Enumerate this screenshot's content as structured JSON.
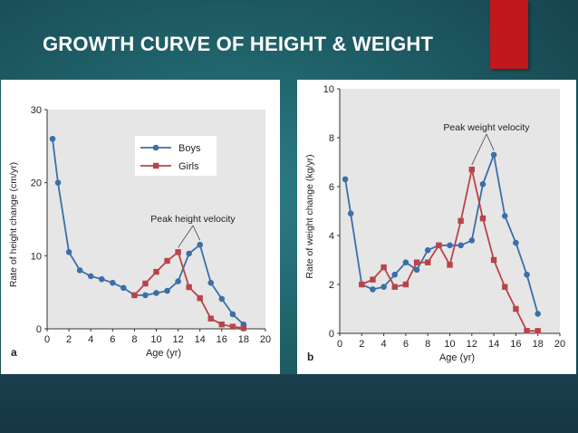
{
  "slide": {
    "title": "GROWTH CURVE OF HEIGHT & WEIGHT",
    "accent_color": "#c0181d",
    "background_color": "#1f6068"
  },
  "chart_data": [
    {
      "type": "line",
      "panel_label": "a",
      "xlabel": "Age (yr)",
      "ylabel": "Rate of height change (cm/yr)",
      "xlim": [
        0,
        20
      ],
      "ylim": [
        0,
        30
      ],
      "x_ticks": [
        "0",
        "2",
        "4",
        "6",
        "8",
        "10",
        "12",
        "14",
        "16",
        "18",
        "20"
      ],
      "y_ticks": [
        "0",
        "10",
        "20",
        "30"
      ],
      "grid": false,
      "legend_position": "top-right",
      "annotation": "Peak height velocity",
      "series": [
        {
          "name": "Boys",
          "color": "#3b6fa8",
          "marker": "circle",
          "x": [
            0.5,
            1,
            2,
            3,
            4,
            5,
            6,
            7,
            8,
            9,
            10,
            11,
            12,
            13,
            14,
            15,
            16,
            17,
            18
          ],
          "y": [
            26,
            20,
            10.5,
            8,
            7.2,
            6.8,
            6.3,
            5.6,
            4.6,
            4.6,
            4.9,
            5.2,
            6.5,
            10.3,
            11.5,
            6.3,
            4.1,
            2,
            0.6
          ]
        },
        {
          "name": "Girls",
          "color": "#b8444b",
          "marker": "square",
          "x": [
            8,
            9,
            10,
            11,
            12,
            13,
            14,
            15,
            16,
            17,
            18
          ],
          "y": [
            4.6,
            6.2,
            7.8,
            9.3,
            10.5,
            5.7,
            4.2,
            1.4,
            0.6,
            0.3,
            0.1
          ]
        }
      ]
    },
    {
      "type": "line",
      "panel_label": "b",
      "xlabel": "Age (yr)",
      "ylabel": "Rate of weight change (kg/yr)",
      "xlim": [
        0,
        20
      ],
      "ylim": [
        0,
        10
      ],
      "x_ticks": [
        "0",
        "2",
        "4",
        "6",
        "8",
        "10",
        "12",
        "14",
        "16",
        "18",
        "20"
      ],
      "y_ticks": [
        "0",
        "2",
        "4",
        "6",
        "8",
        "10"
      ],
      "grid": false,
      "annotation": "Peak weight velocity",
      "series": [
        {
          "name": "Boys",
          "color": "#3b6fa8",
          "marker": "circle",
          "x": [
            0.5,
            1,
            2,
            3,
            4,
            5,
            6,
            7,
            8,
            9,
            10,
            11,
            12,
            13,
            14,
            15,
            16,
            17,
            18
          ],
          "y": [
            6.3,
            4.9,
            2,
            1.8,
            1.9,
            2.4,
            2.9,
            2.6,
            3.4,
            3.6,
            3.6,
            3.6,
            3.8,
            6.1,
            7.3,
            4.8,
            3.7,
            2.4,
            0.8
          ]
        },
        {
          "name": "Girls",
          "color": "#b8444b",
          "marker": "square",
          "x": [
            2,
            3,
            4,
            5,
            6,
            7,
            8,
            9,
            10,
            11,
            12,
            13,
            14,
            15,
            16,
            17,
            18
          ],
          "y": [
            2,
            2.2,
            2.7,
            1.9,
            2,
            2.9,
            2.9,
            3.6,
            2.8,
            4.6,
            6.7,
            4.7,
            3,
            1.9,
            1,
            0.1,
            0.1
          ]
        }
      ]
    }
  ]
}
